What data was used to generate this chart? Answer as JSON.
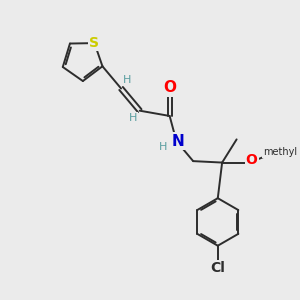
{
  "background_color": "#ebebeb",
  "bond_color": "#2d2d2d",
  "atom_colors": {
    "S": "#cccc00",
    "N": "#0000cc",
    "O": "#ff0000",
    "Cl": "#2d2d2d",
    "C": "#2d2d2d",
    "H": "#5a9ea0"
  },
  "font_size": 9,
  "lw": 1.4
}
